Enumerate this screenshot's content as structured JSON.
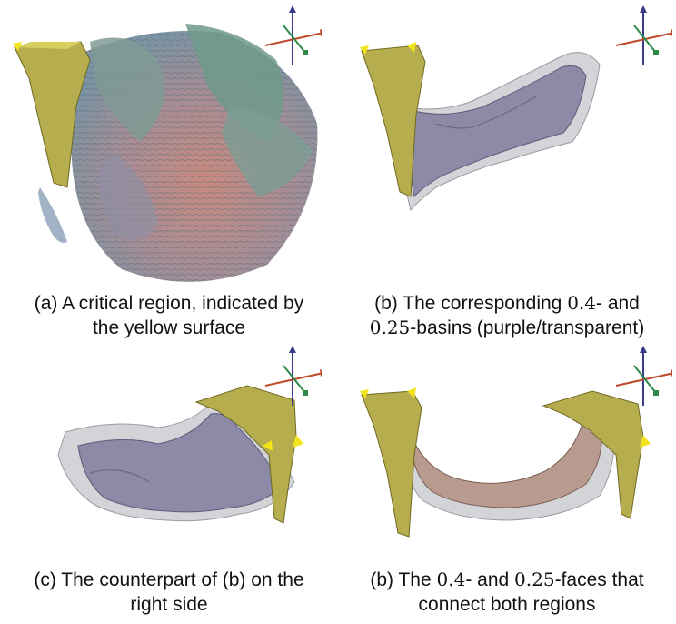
{
  "figure": {
    "panels": [
      {
        "id": "a",
        "caption": {
          "line1": "(a) A critical region, indicated by",
          "line2": "the yellow surface"
        }
      },
      {
        "id": "b",
        "caption": {
          "line1_pre": "(b) The corresponding ",
          "line1_math": "0.4",
          "line1_post": "- and",
          "line2_math": "0.25",
          "line2_post": "-basins (purple/transparent)"
        }
      },
      {
        "id": "c",
        "caption": {
          "line1": "(c) The counterpart of (b) on the",
          "line2": "right side"
        }
      },
      {
        "id": "d",
        "caption": {
          "line1_pre": "(b) The ",
          "line1_math_a": "0.4",
          "line1_mid": "- and ",
          "line1_math_b": "0.25",
          "line1_post": "-faces that",
          "line2": "connect both regions"
        }
      }
    ],
    "colors": {
      "critical_surface": "#b5ad4e",
      "basin_purple": "#8c8aa6",
      "basin_transparent": "#d3d4d8",
      "faces": "#b99a8e",
      "axis_x": "#c04a2a",
      "axis_y": "#3a3a8a",
      "axis_z": "#2f8a4a"
    }
  }
}
